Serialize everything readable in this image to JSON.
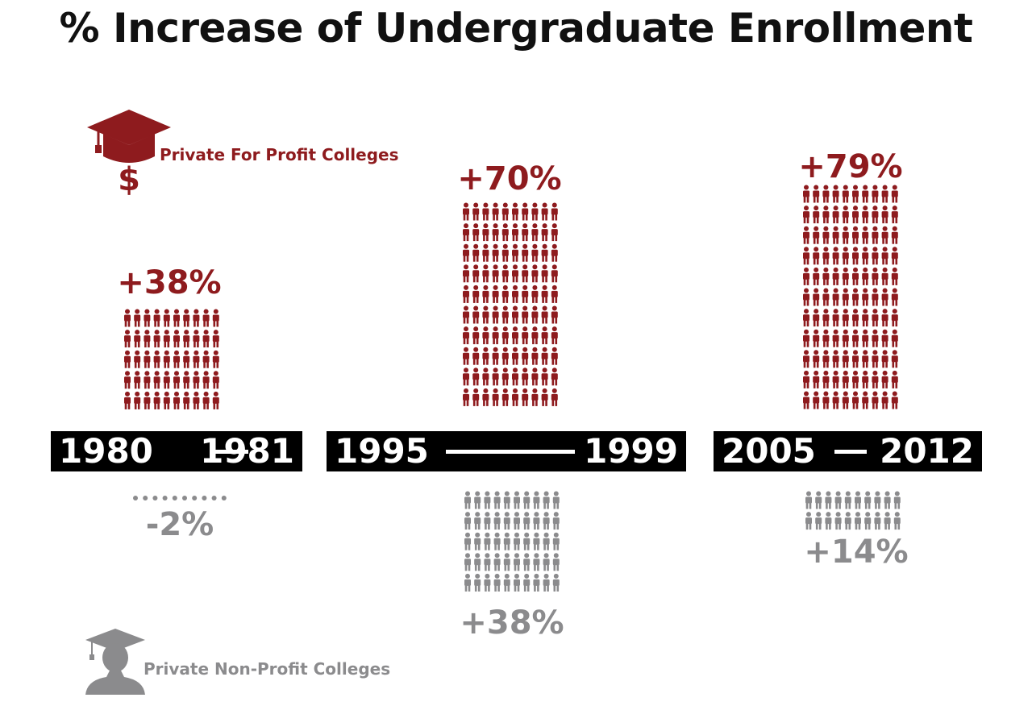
{
  "title": "% Increase of Undergraduate Enrollment",
  "legend": {
    "for_profit": "Private For Profit Colleges",
    "non_profit": "Private Non-Profit Colleges"
  },
  "colors": {
    "for_profit": "#8e1b1e",
    "non_profit": "#8b8b8d",
    "bar": "#000000"
  },
  "icons": {
    "for_profit": "graduation-cap-dollar-icon",
    "non_profit": "graduate-silhouette-icon",
    "unit": "person-icon"
  },
  "periods": [
    {
      "start": "1980",
      "end": "1981",
      "for_profit_label": "+38%",
      "non_profit_label": "-2%"
    },
    {
      "start": "1995",
      "end": "1999",
      "for_profit_label": "+70%",
      "non_profit_label": "+38%"
    },
    {
      "start": "2005",
      "end": "2012",
      "for_profit_label": "+79%",
      "non_profit_label": "+14%"
    }
  ],
  "chart_data": {
    "type": "bar",
    "categories": [
      "1980 - 1981",
      "1995 - 1999",
      "2005 - 2012"
    ],
    "series": [
      {
        "name": "Private For Profit Colleges",
        "values": [
          38,
          70,
          79
        ]
      },
      {
        "name": "Private Non-Profit Colleges",
        "values": [
          -2,
          38,
          14
        ]
      }
    ],
    "title": "% Increase of Undergraduate Enrollment",
    "xlabel": "",
    "ylabel": ""
  }
}
